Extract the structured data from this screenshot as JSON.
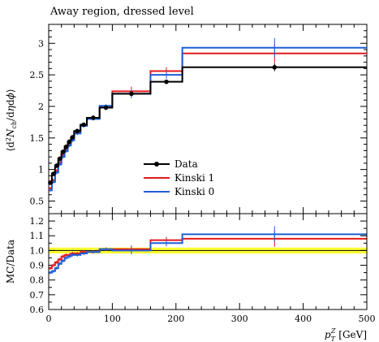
{
  "chart_data": [
    {
      "type": "line",
      "panel": "main",
      "title": "Away region, dressed level",
      "ylabel": "⟨d²N_ch/dηdϕ⟩",
      "ylim": [
        0.3,
        3.3
      ],
      "xlim": [
        0,
        500
      ],
      "yticks": [
        0.5,
        1,
        1.5,
        2,
        2.5,
        3
      ],
      "ytick_labels": [
        "0.5",
        "1",
        "1.5",
        "2",
        "2.5",
        "3"
      ],
      "legend_position": "center-right",
      "bin_edges": [
        0,
        5,
        10,
        15,
        20,
        25,
        30,
        35,
        40,
        50,
        60,
        80,
        100,
        160,
        210,
        500
      ],
      "series": [
        {
          "name": "Data",
          "color": "#000000",
          "style": "points-with-step",
          "values": [
            0.79,
            0.93,
            1.06,
            1.17,
            1.28,
            1.36,
            1.44,
            1.51,
            1.61,
            1.71,
            1.82,
            1.98,
            2.2,
            2.39,
            2.62
          ]
        },
        {
          "name": "Kinski 1",
          "color": "#e41a1c",
          "style": "step",
          "values": [
            0.7,
            0.83,
            0.98,
            1.11,
            1.23,
            1.31,
            1.4,
            1.48,
            1.58,
            1.7,
            1.81,
            2.0,
            2.24,
            2.56,
            2.84
          ]
        },
        {
          "name": "Kinski 0",
          "color": "#1f5fd6",
          "style": "step",
          "values": [
            0.67,
            0.8,
            0.95,
            1.08,
            1.2,
            1.29,
            1.38,
            1.46,
            1.57,
            1.69,
            1.8,
            2.01,
            2.2,
            2.5,
            2.93
          ]
        }
      ]
    },
    {
      "type": "line",
      "panel": "ratio",
      "xlabel": "p_T^Z [GeV]",
      "ylabel": "MC/Data",
      "ylim": [
        0.6,
        1.25
      ],
      "xlim": [
        0,
        500
      ],
      "yticks": [
        0.6,
        0.7,
        0.8,
        0.9,
        1.0,
        1.1,
        1.2
      ],
      "ytick_labels": [
        "0.6",
        "0.7",
        "0.8",
        "0.9",
        "1.0",
        "1.1",
        "1.2"
      ],
      "xticks": [
        0,
        100,
        200,
        300,
        400,
        500
      ],
      "xtick_labels": [
        "0",
        "100",
        "200",
        "300",
        "400",
        "500"
      ],
      "band": [
        0.98,
        1.02
      ],
      "band_color": "#ffff33",
      "bin_edges": [
        0,
        5,
        10,
        15,
        20,
        25,
        30,
        35,
        40,
        50,
        60,
        80,
        100,
        160,
        210,
        500
      ],
      "series": [
        {
          "name": "Kinski 1",
          "color": "#e41a1c",
          "values": [
            0.88,
            0.9,
            0.92,
            0.94,
            0.96,
            0.97,
            0.97,
            0.98,
            0.98,
            0.99,
            0.99,
            1.01,
            1.01,
            1.07,
            1.08
          ]
        },
        {
          "name": "Kinski 0",
          "color": "#1f5fd6",
          "values": [
            0.85,
            0.86,
            0.88,
            0.91,
            0.93,
            0.95,
            0.96,
            0.97,
            0.97,
            0.98,
            0.99,
            1.01,
            1.0,
            1.05,
            1.11
          ]
        }
      ]
    }
  ]
}
